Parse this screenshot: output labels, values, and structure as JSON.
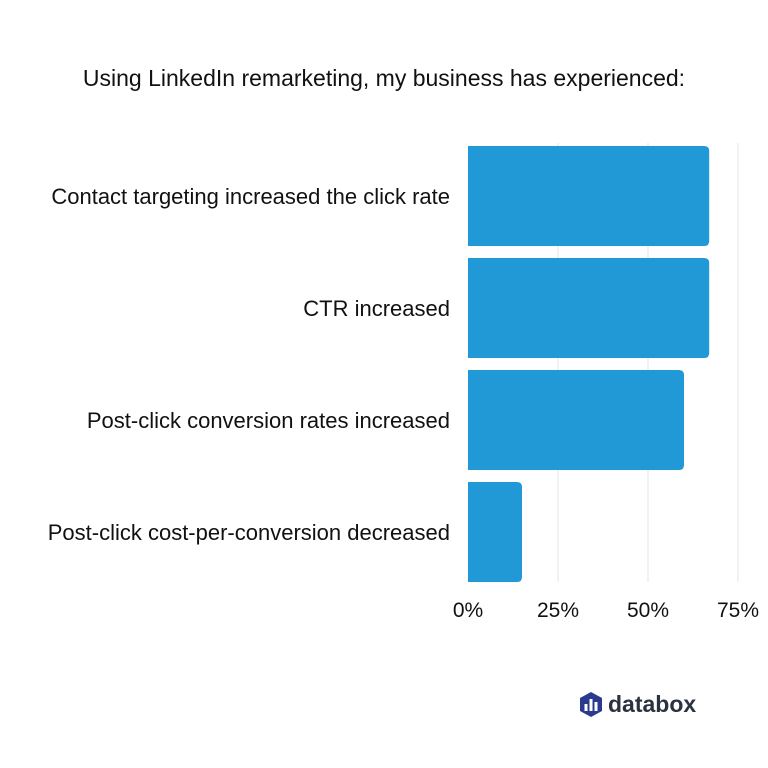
{
  "chart_data": {
    "type": "bar",
    "orientation": "horizontal",
    "title": "Using LinkedIn remarketing, my business has experienced:",
    "categories": [
      "Contact targeting increased the click rate",
      "CTR increased",
      "Post-click conversion rates increased",
      "Post-click cost-per-conversion decreased"
    ],
    "values": [
      67,
      67,
      60,
      15
    ],
    "x_ticks": [
      "0%",
      "25%",
      "50%",
      "75%"
    ],
    "x_tick_values": [
      0,
      25,
      50,
      75
    ],
    "xlim": [
      0,
      75
    ],
    "grid": true,
    "bar_color": "#2199d6"
  },
  "brand": {
    "name": "databox",
    "logo_colors": [
      "#2a3b8f",
      "#3a86d6"
    ]
  }
}
